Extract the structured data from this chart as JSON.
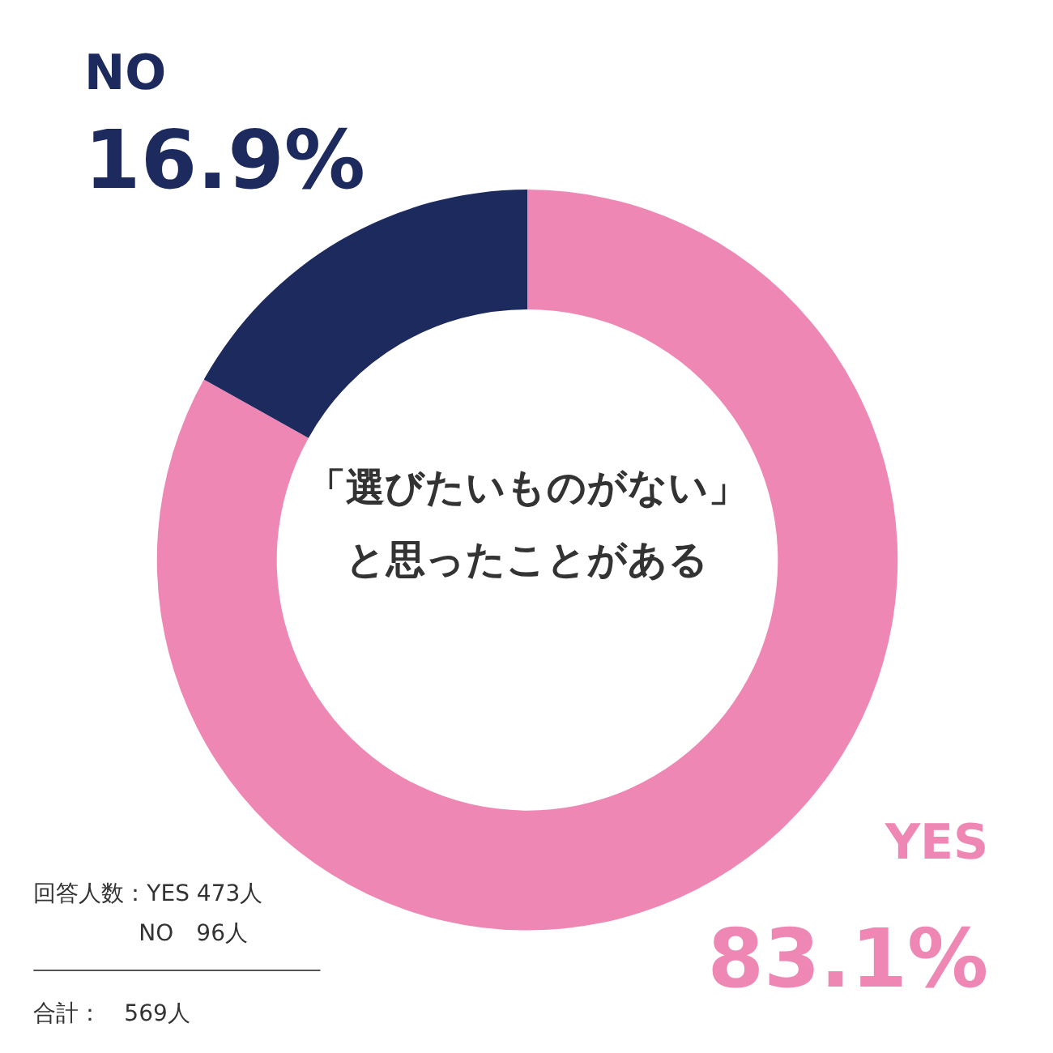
{
  "chart_data": {
    "type": "donut",
    "title": "「選びたいものがない」",
    "subtitle": "と思ったことがある",
    "categories": [
      "YES",
      "NO"
    ],
    "values": [
      83.1,
      16.9
    ],
    "colors": [
      "#ee87b4",
      "#1c2a5e"
    ],
    "value_labels": [
      "83.1%",
      "16.9%"
    ],
    "annotations": [
      "回答人数：YES 473人",
      "NO　96人",
      "合計：　569人"
    ]
  }
}
